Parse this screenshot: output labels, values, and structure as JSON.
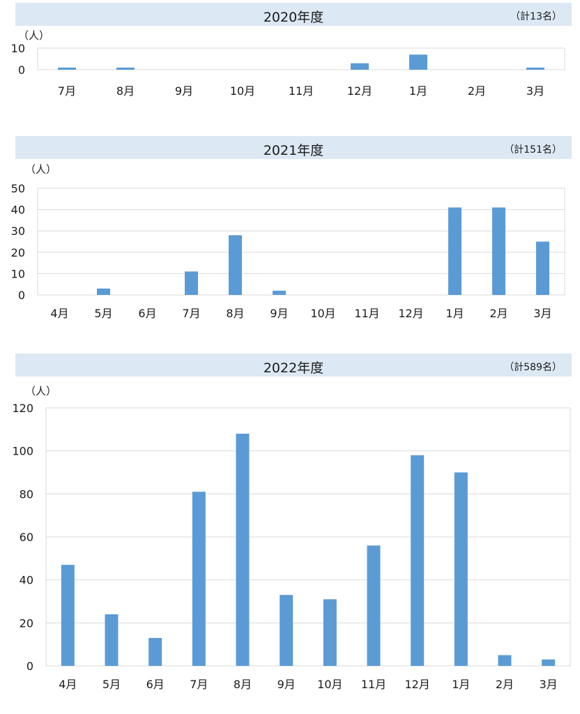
{
  "colors": {
    "bar": "#5b9bd5",
    "header_bg": "#dce8f4",
    "grid": "#d9d9d9"
  },
  "chart_data": [
    {
      "type": "bar",
      "title": "2020年度",
      "total": "（計13名）",
      "ylabel": "（人）",
      "categories": [
        "7月",
        "8月",
        "9月",
        "10月",
        "11月",
        "12月",
        "1月",
        "2月",
        "3月"
      ],
      "values": [
        1,
        1,
        0,
        0,
        0,
        3,
        7,
        0,
        1
      ],
      "ylim": [
        0,
        10
      ],
      "yticks": [
        0,
        10
      ],
      "grid": true
    },
    {
      "type": "bar",
      "title": "2021年度",
      "total": "（計151名）",
      "ylabel": "（人）",
      "categories": [
        "4月",
        "5月",
        "6月",
        "7月",
        "8月",
        "9月",
        "10月",
        "11月",
        "12月",
        "1月",
        "2月",
        "3月"
      ],
      "values": [
        0,
        3,
        0,
        11,
        28,
        2,
        0,
        0,
        0,
        41,
        41,
        25
      ],
      "ylim": [
        0,
        50
      ],
      "yticks": [
        0,
        10,
        20,
        30,
        40,
        50
      ],
      "grid": true
    },
    {
      "type": "bar",
      "title": "2022年度",
      "total": "（計589名）",
      "ylabel": "（人）",
      "categories": [
        "4月",
        "5月",
        "6月",
        "7月",
        "8月",
        "9月",
        "10月",
        "11月",
        "12月",
        "1月",
        "2月",
        "3月"
      ],
      "values": [
        47,
        24,
        13,
        81,
        108,
        33,
        31,
        56,
        98,
        90,
        5,
        3
      ],
      "ylim": [
        0,
        120
      ],
      "yticks": [
        0,
        20,
        40,
        60,
        80,
        100,
        120
      ],
      "grid": true
    }
  ]
}
